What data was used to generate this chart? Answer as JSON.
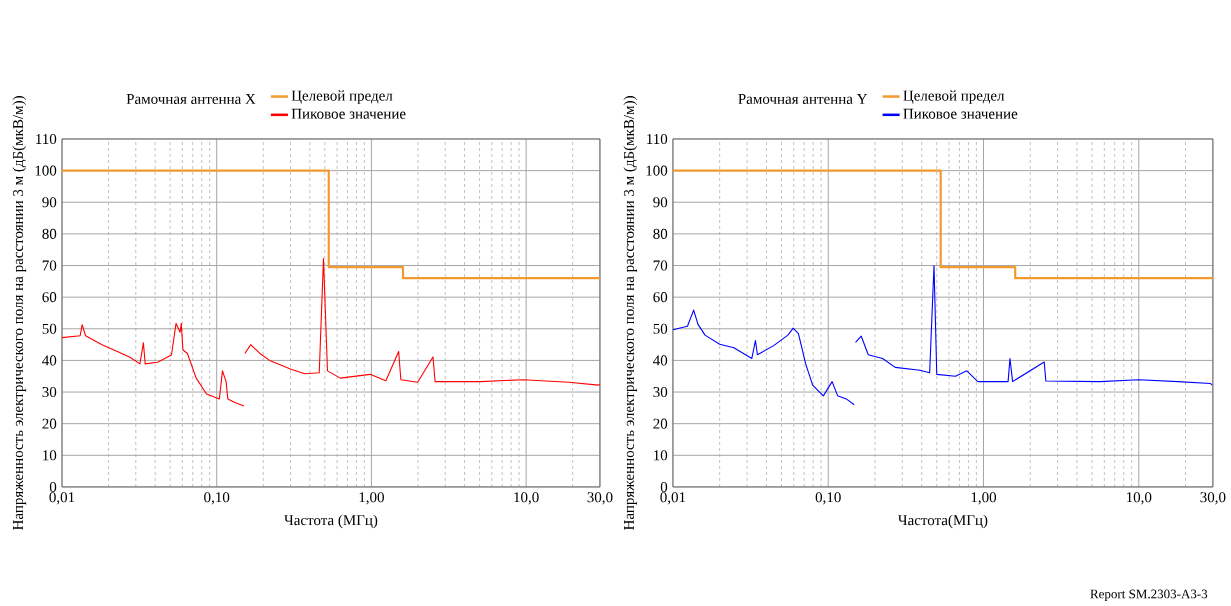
{
  "chart_data": [
    {
      "type": "line",
      "legend_title": "Рамочная антенна X",
      "xlabel": "Частота (МГц)",
      "ylabel": "Напряженность электрического поля на расстоянии 3 м (дБ(мкВ/м))",
      "log": "x",
      "grid": true,
      "legend": "top",
      "marker": "none",
      "xlim": [
        0.01,
        30
      ],
      "xticks": [
        {
          "value": 0.01,
          "label": "0,01"
        },
        {
          "value": 0.1,
          "label": "0,10"
        },
        {
          "value": 1,
          "label": "1,00"
        },
        {
          "value": 10,
          "label": "10,0"
        },
        {
          "value": 30,
          "label": "30,0"
        }
      ],
      "ylim": [
        0,
        110
      ],
      "yticks": [
        0,
        10,
        20,
        30,
        40,
        50,
        60,
        70,
        80,
        90,
        100,
        110
      ],
      "series": [
        {
          "name": "Целевой предел",
          "type": "step",
          "color": "#f39a2e",
          "x": [
            0.01,
            0.53,
            1.6,
            30
          ],
          "values": [
            100,
            69.5,
            66,
            66
          ]
        },
        {
          "name": "Пиковое значение",
          "color": "#ff0000",
          "x": [
            0.01,
            0.0131,
            0.0135,
            0.0142,
            0.018,
            0.0228,
            0.0273,
            0.0319,
            0.0336,
            0.0345,
            0.0415,
            0.051,
            0.0546,
            0.058,
            0.059,
            0.0605,
            0.0647,
            0.0737,
            0.086,
            0.104,
            0.109,
            0.115,
            0.118,
            0.131,
            0.15,
            0.151,
            0.152,
            0.166,
            0.19,
            0.22,
            0.302,
            0.37,
            0.46,
            0.49,
            0.52,
            0.63,
            0.98,
            1.24,
            1.5,
            1.55,
            1.99,
            2.5,
            2.58,
            5.1,
            9.6,
            18.9,
            29.3,
            30
          ],
          "values": [
            47.2,
            47.8,
            51.3,
            47.8,
            45,
            42.8,
            41.1,
            38.9,
            45.6,
            38.9,
            39.4,
            41.7,
            51.7,
            48.9,
            51.7,
            43.3,
            42.2,
            34.4,
            29.4,
            27.8,
            36.7,
            33.3,
            27.8,
            26.7,
            25.6,
            null,
            42.2,
            45,
            42.2,
            40,
            37.2,
            35.8,
            36.1,
            72.2,
            36.7,
            34.4,
            35.6,
            33.6,
            42.8,
            33.9,
            33.1,
            41.1,
            33.3,
            33.3,
            33.9,
            33.1,
            32.2,
            32.4
          ]
        }
      ]
    },
    {
      "type": "line",
      "legend_title": "Рамочная антенна Y",
      "xlabel": "Частота(МГц)",
      "ylabel": "Напряженность электрического поля на расстоянии 3 м (дБ(мкВ/м))",
      "log": "x",
      "grid": true,
      "legend": "top",
      "marker": "none",
      "xlim": [
        0.01,
        30
      ],
      "xticks": [
        {
          "value": 0.01,
          "label": "0,01"
        },
        {
          "value": 0.1,
          "label": "0,10"
        },
        {
          "value": 1,
          "label": "1,00"
        },
        {
          "value": 10,
          "label": "10,0"
        },
        {
          "value": 30,
          "label": "30,0"
        }
      ],
      "ylim": [
        0,
        110
      ],
      "yticks": [
        0,
        10,
        20,
        30,
        40,
        50,
        60,
        70,
        80,
        90,
        100,
        110
      ],
      "annotations": [
        "Report SM.2303-A3-3"
      ],
      "series": [
        {
          "name": "Целевой предел",
          "type": "step",
          "color": "#f39a2e",
          "x": [
            0.01,
            0.53,
            1.6,
            30
          ],
          "values": [
            100,
            69.5,
            66,
            66
          ]
        },
        {
          "name": "Пиковое значение",
          "color": "#0000ff",
          "x": [
            0.01,
            0.0124,
            0.0136,
            0.0145,
            0.0161,
            0.02,
            0.0247,
            0.0322,
            0.034,
            0.035,
            0.0443,
            0.055,
            0.0595,
            0.0643,
            0.0716,
            0.0794,
            0.093,
            0.106,
            0.115,
            0.132,
            0.147,
            0.148,
            0.15,
            0.163,
            0.181,
            0.224,
            0.27,
            0.39,
            0.45,
            0.48,
            0.5,
            0.66,
            0.78,
            0.92,
            1.44,
            1.48,
            1.54,
            2.46,
            2.52,
            5.6,
            10,
            17.9,
            29,
            29.6
          ],
          "values": [
            49.7,
            50.8,
            55.9,
            51.4,
            48,
            45.1,
            44,
            40.6,
            46.3,
            41.8,
            44.6,
            48,
            50.2,
            48.5,
            38.9,
            32.2,
            28.8,
            33.3,
            28.8,
            27.7,
            26,
            null,
            45.7,
            47.7,
            41.8,
            40.6,
            37.8,
            36.9,
            36.1,
            70,
            35.6,
            35,
            36.7,
            33.3,
            33.3,
            40.6,
            33.3,
            39.5,
            33.5,
            33.3,
            33.9,
            33.3,
            32.7,
            32.2
          ]
        }
      ]
    }
  ]
}
